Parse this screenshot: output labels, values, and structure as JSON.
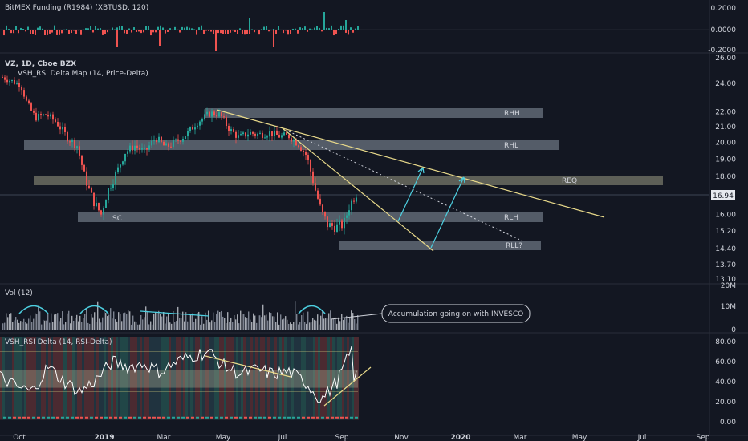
{
  "panes": {
    "funding": {
      "title": "BitMEX Funding (R1984) (XBTUSD, 120)",
      "ticks": [
        "0.2000",
        "0.0000",
        "-0.2000"
      ]
    },
    "price": {
      "title": "VZ, 1D, Cboe BZX",
      "indicator": "VSH_RSI Delta Map (14, Price-Delta)",
      "last_price": "16.94",
      "ticks": [
        "26.00",
        "24.00",
        "22.00",
        "21.00",
        "20.00",
        "19.00",
        "18.00",
        "16.00",
        "15.20",
        "14.40",
        "13.70",
        "13.10"
      ]
    },
    "volume": {
      "title": "Vol (12)",
      "ticks": [
        "20M",
        "10M",
        "0"
      ],
      "callout": "Accumulation going on with INVESCO"
    },
    "rsi": {
      "title": "VSH_RSI Delta (14, RSI-Delta)",
      "ticks": [
        "80.00",
        "60.00",
        "40.00",
        "20.00",
        "0.00"
      ]
    }
  },
  "time_axis": [
    "Oct",
    "2019",
    "Mar",
    "May",
    "Jul",
    "Sep",
    "Nov",
    "2020",
    "Mar",
    "May",
    "Jul",
    "Sep"
  ],
  "chart_data": {
    "type": "line",
    "title": "VZ, 1D, Cboe BZX",
    "yscale": "log",
    "ylim": [
      13.1,
      26
    ],
    "zones": [
      {
        "label": "RHH",
        "level": 21.6
      },
      {
        "label": "RHL",
        "level": 19.8
      },
      {
        "label": "REQ",
        "level": 17.7
      },
      {
        "label": "RLH",
        "level": 15.9
      },
      {
        "label": "RLL?",
        "level": 14.6
      }
    ],
    "annotations": [
      "SC"
    ],
    "close_series": [
      {
        "x": "Oct",
        "y": 24.2
      },
      {
        "x": "Nov",
        "y": 21.4
      },
      {
        "x": "Dec",
        "y": 17.2
      },
      {
        "x": "2019",
        "y": 17.8
      },
      {
        "x": "Feb",
        "y": 19.4
      },
      {
        "x": "Mar",
        "y": 20.2
      },
      {
        "x": "Apr",
        "y": 20.6
      },
      {
        "x": "May",
        "y": 21.8
      },
      {
        "x": "Jun",
        "y": 20.6
      },
      {
        "x": "Jul",
        "y": 20.5
      },
      {
        "x": "Aug",
        "y": 17.0
      },
      {
        "x": "Sep",
        "y": 15.2
      },
      {
        "x": "Sep",
        "y": 16.94
      }
    ]
  },
  "colors": {
    "up": "#26a69a",
    "down": "#ef5350",
    "trend": "#e8d98a",
    "arrow": "#4dd0e1",
    "zone": "#8a96a3"
  }
}
